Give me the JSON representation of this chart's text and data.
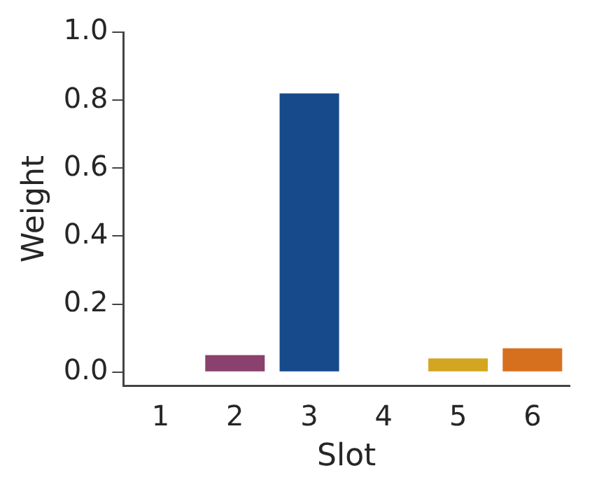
{
  "chart_data": {
    "type": "bar",
    "xlabel": "Slot",
    "ylabel": "Weight",
    "categories": [
      "1",
      "2",
      "3",
      "4",
      "5",
      "6"
    ],
    "values": [
      0,
      0.05,
      0.82,
      0,
      0.04,
      0.07
    ],
    "colors": [
      "#8a416e",
      "#8a416e",
      "#174a8a",
      "#174a8a",
      "#d4a520",
      "#d6701f"
    ],
    "ylim": [
      -0.04,
      1.0
    ],
    "yticks": [
      {
        "value": 0,
        "label": "0.0"
      },
      0.2,
      0.4,
      0.6,
      0.8,
      {
        "value": 1,
        "label": "1.0"
      }
    ],
    "grid": false,
    "legend": false
  }
}
